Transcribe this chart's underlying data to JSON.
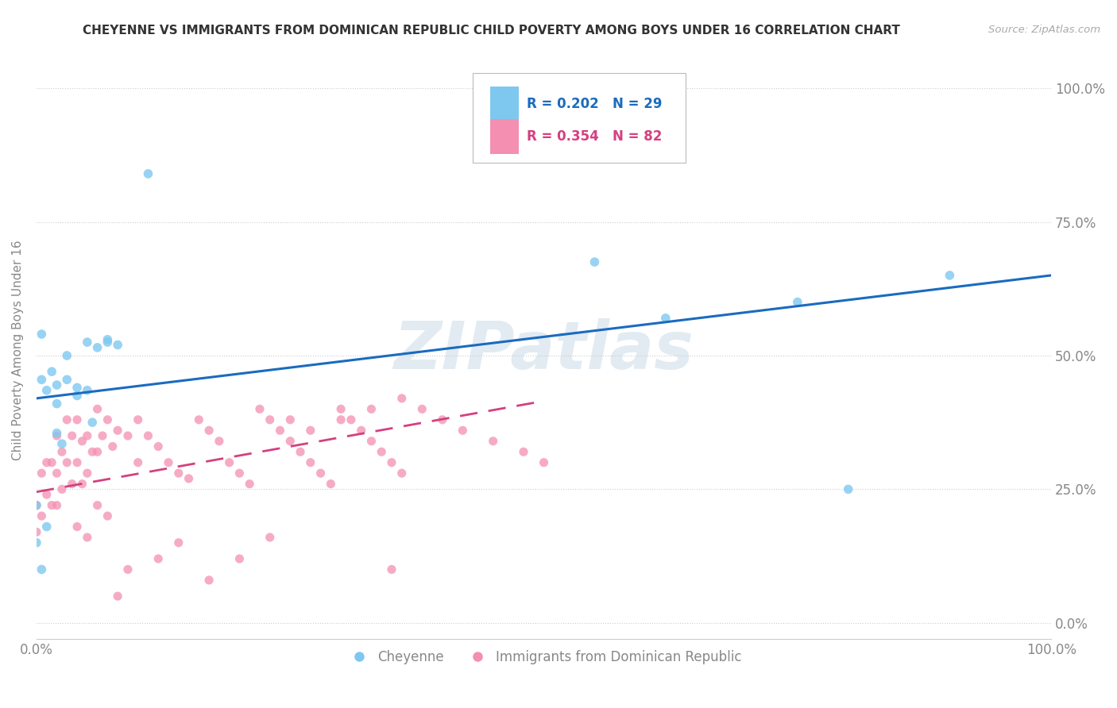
{
  "title": "CHEYENNE VS IMMIGRANTS FROM DOMINICAN REPUBLIC CHILD POVERTY AMONG BOYS UNDER 16 CORRELATION CHART",
  "source": "Source: ZipAtlas.com",
  "ylabel": "Child Poverty Among Boys Under 16",
  "ytick_vals": [
    0.0,
    0.25,
    0.5,
    0.75,
    1.0
  ],
  "ytick_labels": [
    "0.0%",
    "25.0%",
    "50.0%",
    "75.0%",
    "100.0%"
  ],
  "xtick_vals": [
    0.0,
    1.0
  ],
  "xtick_labels": [
    "0.0%",
    "100.0%"
  ],
  "xlim": [
    0.0,
    1.0
  ],
  "ylim": [
    -0.03,
    1.05
  ],
  "cheyenne_color": "#7ec8f0",
  "dr_color": "#f48fb1",
  "reg_cheyenne_color": "#1a6bbf",
  "reg_dr_color": "#d44080",
  "R_cheyenne": 0.202,
  "N_cheyenne": 29,
  "R_dr": 0.354,
  "N_dr": 82,
  "watermark": "ZIPatlas",
  "legend_label_cheyenne": "Cheyenne",
  "legend_label_dr": "Immigrants from Dominican Republic",
  "background_color": "#ffffff",
  "grid_color": "#cccccc",
  "tick_label_color": "#888888",
  "title_color": "#333333",
  "cheyenne_x": [
    0.05,
    0.06,
    0.11,
    0.005,
    0.005,
    0.01,
    0.015,
    0.02,
    0.02,
    0.03,
    0.03,
    0.04,
    0.04,
    0.05,
    0.055,
    0.02,
    0.025,
    0.0,
    0.01,
    0.0,
    0.005,
    0.07,
    0.07,
    0.55,
    0.62,
    0.75,
    0.8,
    0.9,
    0.08
  ],
  "cheyenne_y": [
    0.525,
    0.515,
    0.84,
    0.54,
    0.455,
    0.435,
    0.47,
    0.41,
    0.445,
    0.5,
    0.455,
    0.425,
    0.44,
    0.435,
    0.375,
    0.355,
    0.335,
    0.22,
    0.18,
    0.15,
    0.1,
    0.525,
    0.53,
    0.675,
    0.57,
    0.6,
    0.25,
    0.65,
    0.52
  ],
  "dr_x": [
    0.0,
    0.0,
    0.005,
    0.005,
    0.01,
    0.01,
    0.015,
    0.015,
    0.02,
    0.02,
    0.02,
    0.025,
    0.025,
    0.03,
    0.03,
    0.035,
    0.035,
    0.04,
    0.04,
    0.045,
    0.045,
    0.05,
    0.05,
    0.055,
    0.06,
    0.06,
    0.065,
    0.07,
    0.075,
    0.08,
    0.09,
    0.1,
    0.1,
    0.11,
    0.12,
    0.13,
    0.14,
    0.15,
    0.16,
    0.17,
    0.18,
    0.19,
    0.2,
    0.21,
    0.22,
    0.23,
    0.24,
    0.25,
    0.26,
    0.27,
    0.28,
    0.29,
    0.3,
    0.31,
    0.32,
    0.33,
    0.34,
    0.35,
    0.36,
    0.38,
    0.4,
    0.42,
    0.45,
    0.48,
    0.5,
    0.08,
    0.09,
    0.12,
    0.14,
    0.17,
    0.2,
    0.23,
    0.25,
    0.27,
    0.3,
    0.33,
    0.36,
    0.04,
    0.05,
    0.06,
    0.07,
    0.35
  ],
  "dr_y": [
    0.22,
    0.17,
    0.28,
    0.2,
    0.3,
    0.24,
    0.3,
    0.22,
    0.35,
    0.28,
    0.22,
    0.32,
    0.25,
    0.38,
    0.3,
    0.35,
    0.26,
    0.38,
    0.3,
    0.34,
    0.26,
    0.35,
    0.28,
    0.32,
    0.4,
    0.32,
    0.35,
    0.38,
    0.33,
    0.36,
    0.35,
    0.38,
    0.3,
    0.35,
    0.33,
    0.3,
    0.28,
    0.27,
    0.38,
    0.36,
    0.34,
    0.3,
    0.28,
    0.26,
    0.4,
    0.38,
    0.36,
    0.34,
    0.32,
    0.3,
    0.28,
    0.26,
    0.4,
    0.38,
    0.36,
    0.34,
    0.32,
    0.3,
    0.28,
    0.4,
    0.38,
    0.36,
    0.34,
    0.32,
    0.3,
    0.05,
    0.1,
    0.12,
    0.15,
    0.08,
    0.12,
    0.16,
    0.38,
    0.36,
    0.38,
    0.4,
    0.42,
    0.18,
    0.16,
    0.22,
    0.2,
    0.1
  ]
}
